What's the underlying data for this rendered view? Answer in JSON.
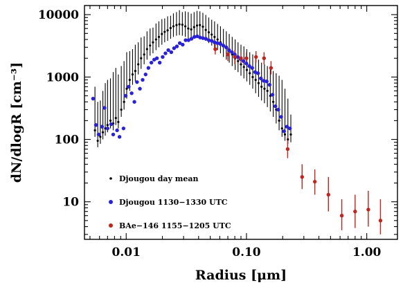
{
  "chart_data": {
    "type": "scatter",
    "xlabel": "Radius [μm]",
    "ylabel": "dN/dlogR [cm⁻³]",
    "x_scale": "log",
    "y_scale": "log",
    "xlim": [
      0.0045,
      1.8
    ],
    "ylim": [
      2.5,
      14000
    ],
    "x_tick_labels": [
      {
        "value": 0.01,
        "label": "0.01"
      },
      {
        "value": 0.1,
        "label": "0.10"
      },
      {
        "value": 1.0,
        "label": "1.00"
      }
    ],
    "y_tick_labels": [
      {
        "value": 10,
        "label": "10"
      },
      {
        "value": 100,
        "label": "100"
      },
      {
        "value": 1000,
        "label": "1000"
      },
      {
        "value": 10000,
        "label": "10000"
      }
    ],
    "legend_position": "bottom-left",
    "series": [
      {
        "name": "Djougou day mean",
        "color": "#000000",
        "marker": "small-dot",
        "error_bars": true,
        "x": [
          0.0055,
          0.0058,
          0.0061,
          0.0064,
          0.0067,
          0.007,
          0.0074,
          0.0078,
          0.0082,
          0.0086,
          0.0091,
          0.0096,
          0.0101,
          0.0107,
          0.0113,
          0.0119,
          0.0126,
          0.0133,
          0.0141,
          0.0149,
          0.0158,
          0.0167,
          0.0177,
          0.0187,
          0.0198,
          0.0209,
          0.0221,
          0.0234,
          0.0247,
          0.0262,
          0.0277,
          0.0293,
          0.031,
          0.0328,
          0.0347,
          0.0367,
          0.0388,
          0.041,
          0.0434,
          0.0459,
          0.0486,
          0.0514,
          0.0543,
          0.0575,
          0.0608,
          0.0643,
          0.068,
          0.0719,
          0.0761,
          0.0805,
          0.0851,
          0.09,
          0.0952,
          0.1007,
          0.1065,
          0.1127,
          0.1192,
          0.1261,
          0.1334,
          0.1411,
          0.1492,
          0.1578,
          0.1669,
          0.1766,
          0.1868,
          0.1975,
          0.2089,
          0.221,
          0.2338
        ],
        "y": [
          140,
          95,
          110,
          130,
          150,
          170,
          200,
          180,
          220,
          190,
          300,
          400,
          650,
          900,
          1100,
          1250,
          1600,
          2000,
          2300,
          2800,
          3200,
          3600,
          4000,
          4400,
          4900,
          5300,
          5600,
          6100,
          6500,
          6800,
          7000,
          6900,
          6500,
          6000,
          5800,
          6300,
          6700,
          6800,
          6400,
          5700,
          5200,
          4800,
          4400,
          4000,
          3600,
          3200,
          2900,
          2600,
          2300,
          2000,
          1800,
          1600,
          1450,
          1300,
          1150,
          1000,
          900,
          800,
          700,
          650,
          600,
          500,
          400,
          300,
          200,
          150,
          120,
          100,
          120
        ],
        "y_upper": [
          700,
          400,
          420,
          600,
          800,
          900,
          950,
          1200,
          1400,
          1100,
          1500,
          1800,
          2500,
          2600,
          2800,
          3300,
          3600,
          4300,
          4500,
          5400,
          6000,
          6200,
          7200,
          7800,
          8500,
          8700,
          9400,
          9600,
          10500,
          11000,
          11800,
          11000,
          11300,
          11000,
          10400,
          11000,
          11500,
          11300,
          10700,
          9900,
          9000,
          8300,
          7800,
          7100,
          6500,
          5900,
          5400,
          4900,
          4400,
          4000,
          3600,
          3300,
          3100,
          2800,
          2500,
          2300,
          2100,
          1900,
          1700,
          1600,
          1500,
          1350,
          1250,
          1150,
          1050,
          900,
          650,
          450,
          250
        ],
        "y_lower": [
          110,
          75,
          85,
          100,
          115,
          130,
          150,
          140,
          170,
          150,
          230,
          300,
          450,
          600,
          750,
          850,
          1100,
          1350,
          1600,
          1900,
          2200,
          2400,
          2700,
          3000,
          3300,
          3600,
          3800,
          4100,
          4400,
          4600,
          4700,
          4600,
          4400,
          4100,
          3900,
          4200,
          4500,
          4500,
          4300,
          3800,
          3500,
          3200,
          2900,
          2700,
          2400,
          2100,
          1900,
          1700,
          1500,
          1300,
          1200,
          1050,
          950,
          850,
          750,
          650,
          550,
          480,
          420,
          380,
          330,
          280,
          230,
          180,
          140,
          110,
          95,
          85,
          90
        ]
      },
      {
        "name": "Djougou 1130−1330 UTC",
        "color": "#2a22d8",
        "marker": "dot",
        "error_bars": false,
        "x": [
          0.0053,
          0.0056,
          0.0059,
          0.0063,
          0.0066,
          0.007,
          0.0075,
          0.0078,
          0.0084,
          0.0088,
          0.0095,
          0.0099,
          0.0105,
          0.0111,
          0.0117,
          0.0123,
          0.013,
          0.0137,
          0.0145,
          0.0153,
          0.0162,
          0.0171,
          0.018,
          0.019,
          0.0201,
          0.0212,
          0.0224,
          0.0237,
          0.025,
          0.0264,
          0.0279,
          0.0295,
          0.0312,
          0.033,
          0.0349,
          0.0369,
          0.039,
          0.0412,
          0.0435,
          0.046,
          0.0486,
          0.0514,
          0.0543,
          0.0574,
          0.0607,
          0.0641,
          0.0678,
          0.0716,
          0.0757,
          0.08,
          0.0846,
          0.0894,
          0.0945,
          0.0999,
          0.1056,
          0.1116,
          0.118,
          0.1247,
          0.1318,
          0.1393,
          0.1473,
          0.1557,
          0.1645,
          0.1739,
          0.1838,
          0.1943,
          0.2054,
          0.2171,
          0.2295
        ],
        "y": [
          450,
          170,
          120,
          160,
          320,
          150,
          175,
          120,
          140,
          110,
          150,
          500,
          700,
          550,
          400,
          830,
          650,
          900,
          1100,
          1400,
          1700,
          1900,
          2000,
          1700,
          2100,
          2400,
          2700,
          2500,
          2900,
          3100,
          3500,
          3300,
          3900,
          3900,
          4100,
          4400,
          4500,
          4300,
          4200,
          4100,
          3900,
          3800,
          3600,
          3500,
          3400,
          3200,
          3000,
          2700,
          2500,
          2300,
          2100,
          1950,
          1800,
          1650,
          1500,
          1400,
          1200,
          1150,
          950,
          870,
          850,
          750,
          520,
          340,
          300,
          230,
          135,
          160,
          150
        ]
      },
      {
        "name": "BAe−146 1155−1205 UTC",
        "color": "#c0241c",
        "marker": "dot",
        "error_bars": true,
        "x": [
          0.055,
          0.07,
          0.08,
          0.09,
          0.1,
          0.12,
          0.14,
          0.16,
          0.22,
          0.29,
          0.37,
          0.48,
          0.62,
          0.8,
          1.03,
          1.3
        ],
        "y": [
          2800,
          2300,
          2100,
          2000,
          2000,
          2100,
          2000,
          1400,
          70,
          25,
          21,
          13,
          6,
          7,
          7.5,
          5
        ],
        "y_upper": [
          3400,
          3000,
          2700,
          2500,
          2500,
          2600,
          2500,
          1800,
          110,
          40,
          33,
          25,
          11,
          13,
          15,
          11
        ],
        "y_lower": [
          2300,
          1800,
          1600,
          1600,
          1600,
          1700,
          1600,
          1100,
          50,
          16,
          13,
          7,
          3.5,
          3.8,
          4,
          3
        ]
      }
    ]
  }
}
